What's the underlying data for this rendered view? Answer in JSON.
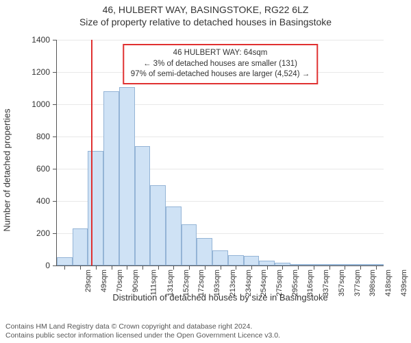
{
  "title_line1": "46, HULBERT WAY, BASINGSTOKE, RG22 6LZ",
  "title_line2": "Size of property relative to detached houses in Basingstoke",
  "y_axis_label": "Number of detached properties",
  "x_axis_label": "Distribution of detached houses by size in Basingstoke",
  "footer_line1": "Contains HM Land Registry data © Crown copyright and database right 2024.",
  "footer_line2": "Contains public sector information licensed under the Open Government Licence v3.0.",
  "chart": {
    "type": "histogram",
    "ylim": [
      0,
      1400
    ],
    "ytick_step": 200,
    "y_ticks": [
      0,
      200,
      400,
      600,
      800,
      1000,
      1200,
      1400
    ],
    "x_categories": [
      "29sqm",
      "49sqm",
      "70sqm",
      "90sqm",
      "111sqm",
      "131sqm",
      "152sqm",
      "172sqm",
      "193sqm",
      "213sqm",
      "234sqm",
      "254sqm",
      "275sqm",
      "295sqm",
      "316sqm",
      "337sqm",
      "357sqm",
      "377sqm",
      "398sqm",
      "418sqm",
      "439sqm"
    ],
    "values": [
      50,
      230,
      710,
      1080,
      1105,
      740,
      500,
      365,
      255,
      170,
      95,
      65,
      60,
      30,
      15,
      10,
      10,
      5,
      3,
      3,
      2
    ],
    "bar_fill": "#cfe2f5",
    "bar_border": "#94b4d6",
    "bar_width_ratio": 1.0,
    "background_color": "#ffffff",
    "grid_color": "#e8e8e8",
    "axis_color": "#555555",
    "tick_font_size": 12,
    "label_font_size": 13,
    "title_font_size": 14,
    "reference_line": {
      "x_value_sqm": 64,
      "color": "#e03030"
    },
    "annotation": {
      "border_color": "#e03030",
      "line1": "46 HULBERT WAY: 64sqm",
      "line2": "← 3% of detached houses are smaller (131)",
      "line3": "97% of semi-detached houses are larger (4,524) →"
    }
  }
}
